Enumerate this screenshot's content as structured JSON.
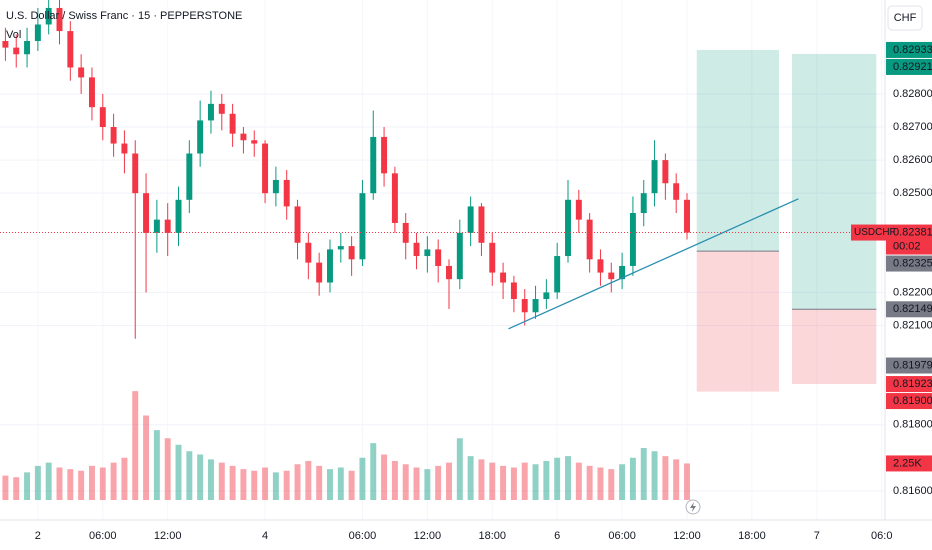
{
  "header": {
    "title": "U.S. Dollar / Swiss Franc · 15 · PEPPERSTONE",
    "volume_label": "Vol",
    "currency": "CHF"
  },
  "chart_data": {
    "type": "candlestick",
    "symbol": "USDCHF",
    "countdown": "00:02",
    "up_color": "#089981",
    "down_color": "#f23645",
    "x": [
      -3,
      -2,
      -1,
      0,
      1,
      2,
      3,
      4,
      5,
      6,
      7,
      8,
      9,
      10,
      11,
      12,
      13,
      14,
      15,
      16,
      17,
      18,
      19,
      20,
      21,
      22,
      23,
      24,
      25,
      26,
      27,
      28,
      29,
      30,
      31,
      32,
      33,
      34,
      35,
      36,
      37,
      38,
      39,
      40,
      41,
      42,
      43,
      44,
      45,
      46,
      47,
      48,
      49,
      50,
      51,
      52,
      53,
      54,
      55,
      56,
      57,
      58,
      59,
      60
    ],
    "open": [
      0.8296,
      0.8294,
      0.8292,
      0.8296,
      0.8301,
      0.8306,
      0.8299,
      0.8288,
      0.8285,
      0.8276,
      0.827,
      0.8265,
      0.8262,
      0.825,
      0.8238,
      0.8242,
      0.8238,
      0.8248,
      0.8262,
      0.8272,
      0.8277,
      0.8274,
      0.8268,
      0.8266,
      0.8265,
      0.825,
      0.8254,
      0.8246,
      0.8235,
      0.8229,
      0.8223,
      0.8233,
      0.8234,
      0.823,
      0.825,
      0.8267,
      0.8256,
      0.8241,
      0.8235,
      0.8231,
      0.8233,
      0.8228,
      0.8224,
      0.8238,
      0.8246,
      0.8235,
      0.8226,
      0.8223,
      0.8218,
      0.8214,
      0.8218,
      0.822,
      0.8231,
      0.8248,
      0.8242,
      0.823,
      0.8226,
      0.8224,
      0.8228,
      0.8244,
      0.825,
      0.826,
      0.8253,
      0.8248
    ],
    "high": [
      0.83,
      0.8298,
      0.83,
      0.8306,
      0.831,
      0.8309,
      0.8302,
      0.8292,
      0.8288,
      0.828,
      0.8274,
      0.8269,
      0.8266,
      0.8256,
      0.8248,
      0.8247,
      0.8252,
      0.8266,
      0.8278,
      0.8281,
      0.828,
      0.8277,
      0.827,
      0.8269,
      0.8266,
      0.8258,
      0.8257,
      0.8248,
      0.8238,
      0.8232,
      0.8236,
      0.8238,
      0.8237,
      0.8254,
      0.8275,
      0.827,
      0.8258,
      0.8244,
      0.8238,
      0.8237,
      0.8236,
      0.823,
      0.8242,
      0.8249,
      0.8247,
      0.8238,
      0.8229,
      0.8225,
      0.8221,
      0.8222,
      0.8224,
      0.8235,
      0.8254,
      0.8251,
      0.8244,
      0.8233,
      0.8229,
      0.8232,
      0.8249,
      0.8254,
      0.8266,
      0.8262,
      0.8256,
      0.825
    ],
    "low": [
      0.829,
      0.8288,
      0.8288,
      0.8293,
      0.8298,
      0.8295,
      0.8284,
      0.828,
      0.8272,
      0.8266,
      0.8261,
      0.8256,
      0.8206,
      0.822,
      0.8232,
      0.8231,
      0.8234,
      0.8244,
      0.8258,
      0.8268,
      0.8269,
      0.8264,
      0.8262,
      0.8261,
      0.8247,
      0.8246,
      0.8242,
      0.823,
      0.8224,
      0.8219,
      0.822,
      0.8229,
      0.8225,
      0.8228,
      0.8248,
      0.8252,
      0.8238,
      0.823,
      0.8227,
      0.8226,
      0.8223,
      0.8215,
      0.8221,
      0.8234,
      0.8231,
      0.8222,
      0.8218,
      0.8214,
      0.821,
      0.8212,
      0.8215,
      0.8218,
      0.8229,
      0.8238,
      0.8226,
      0.8222,
      0.822,
      0.8221,
      0.8225,
      0.824,
      0.8246,
      0.8248,
      0.8244,
      0.8236
    ],
    "close": [
      0.8294,
      0.8292,
      0.8296,
      0.8301,
      0.8306,
      0.8299,
      0.8288,
      0.8285,
      0.8276,
      0.827,
      0.8265,
      0.8262,
      0.825,
      0.8238,
      0.8242,
      0.8238,
      0.8248,
      0.8262,
      0.8272,
      0.8277,
      0.8274,
      0.8268,
      0.8266,
      0.8265,
      0.825,
      0.8254,
      0.8246,
      0.8235,
      0.8229,
      0.8223,
      0.8233,
      0.8234,
      0.823,
      0.825,
      0.8267,
      0.8256,
      0.8241,
      0.8235,
      0.8231,
      0.8233,
      0.8228,
      0.8224,
      0.8238,
      0.8246,
      0.8235,
      0.8226,
      0.8223,
      0.8218,
      0.8214,
      0.8218,
      0.822,
      0.8231,
      0.8248,
      0.8242,
      0.823,
      0.8226,
      0.8224,
      0.8228,
      0.8244,
      0.825,
      0.826,
      0.8253,
      0.8248,
      0.82381
    ],
    "volume": [
      1500,
      1400,
      1700,
      2100,
      2300,
      2000,
      1900,
      1800,
      2100,
      2000,
      2300,
      2600,
      6700,
      5200,
      4300,
      3800,
      3400,
      3000,
      2800,
      2500,
      2300,
      2100,
      1900,
      1800,
      2000,
      1700,
      1800,
      2200,
      2400,
      2100,
      1900,
      2000,
      1800,
      2600,
      3500,
      2800,
      2400,
      2200,
      2000,
      1900,
      2100,
      2300,
      3800,
      2700,
      2500,
      2300,
      2100,
      2000,
      2300,
      2200,
      2400,
      2600,
      2700,
      2300,
      2100,
      2000,
      1900,
      2200,
      2600,
      3200,
      3000,
      2700,
      2500,
      2250
    ],
    "volume_value_label": "2.25K",
    "volume_ylim": [
      0,
      8000
    ],
    "xlim": [
      -3.5,
      78.3
    ],
    "ylim": [
      0.81512,
      0.83084
    ],
    "xticks": [
      {
        "value": 0,
        "label": "2"
      },
      {
        "value": 6,
        "label": "06:00"
      },
      {
        "value": 12,
        "label": "12:00"
      },
      {
        "value": 21,
        "label": "4"
      },
      {
        "value": 30,
        "label": "06:00"
      },
      {
        "value": 36,
        "label": "12:00"
      },
      {
        "value": 42,
        "label": "18:00"
      },
      {
        "value": 48,
        "label": "6"
      },
      {
        "value": 54,
        "label": "06:00"
      },
      {
        "value": 60,
        "label": "12:00"
      },
      {
        "value": 66,
        "label": "18:00"
      },
      {
        "value": 72,
        "label": "7"
      },
      {
        "value": 78,
        "label": "06:0"
      }
    ],
    "yticks": [
      {
        "value": 0.828,
        "label": "0.82800"
      },
      {
        "value": 0.827,
        "label": "0.82700"
      },
      {
        "value": 0.826,
        "label": "0.82600"
      },
      {
        "value": 0.825,
        "label": "0.82500"
      },
      {
        "value": 0.822,
        "label": "0.82200"
      },
      {
        "value": 0.821,
        "label": "0.82100"
      },
      {
        "value": 0.818,
        "label": "0.81800"
      },
      {
        "value": 0.816,
        "label": "0.81600"
      }
    ],
    "positions": [
      {
        "x": [
          60.9,
          68.5
        ],
        "target": 0.82933,
        "entry": 0.82325,
        "stop": 0.819
      },
      {
        "x": [
          69.7,
          77.5
        ],
        "target": 0.82921,
        "entry": 0.82149,
        "stop": 0.81923
      }
    ],
    "trendline": {
      "x": [
        43.5,
        70.3
      ],
      "y": [
        0.8209,
        0.82483
      ],
      "color": "#2a8fb0"
    },
    "price_labels": [
      {
        "value": 0.82933,
        "label": "0.82933",
        "color": "#089981"
      },
      {
        "value": 0.82921,
        "label": "0.82921",
        "color": "#089981"
      },
      {
        "value": 0.82381,
        "label": "0.82381",
        "color": "#f23645"
      },
      {
        "value": 0.82325,
        "label": "0.82325",
        "color": "#787b86"
      },
      {
        "value": 0.82149,
        "label": "0.82149",
        "color": "#787b86"
      },
      {
        "value": 0.81979,
        "label": "0.81979",
        "color": "#787b86"
      },
      {
        "value": 0.81923,
        "label": "0.81923",
        "color": "#f23645"
      },
      {
        "value": 0.819,
        "label": "0.81900",
        "color": "#f23645"
      }
    ]
  }
}
